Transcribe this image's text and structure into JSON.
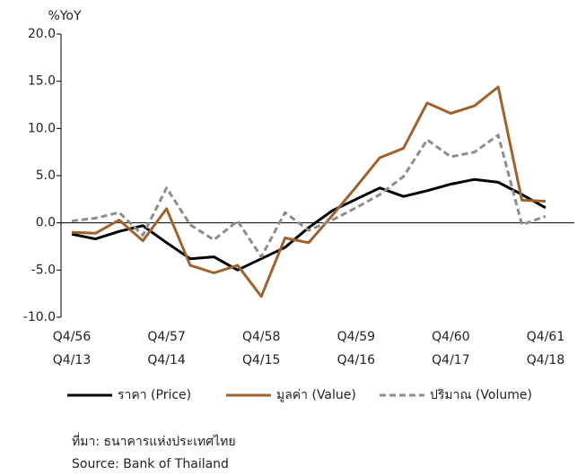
{
  "chart_data": {
    "type": "line",
    "y_axis_label": "%YoY",
    "categories": [
      "Q4/56",
      null,
      null,
      null,
      "Q4/57",
      null,
      null,
      null,
      "Q4/58",
      null,
      null,
      null,
      "Q4/59",
      null,
      null,
      null,
      "Q4/60",
      null,
      null,
      null,
      "Q4/61"
    ],
    "categories_secondary": [
      "Q4/13",
      null,
      null,
      null,
      "Q4/14",
      null,
      null,
      null,
      "Q4/15",
      null,
      null,
      null,
      "Q4/16",
      null,
      null,
      null,
      "Q4/17",
      null,
      null,
      null,
      "Q4/18"
    ],
    "series": [
      {
        "name": "ราคา (Price)",
        "color": "#000000",
        "dash": "solid",
        "values": [
          -1.2,
          -1.7,
          -0.9,
          -0.3,
          -2.1,
          -3.8,
          -3.6,
          -5.0,
          -3.8,
          -2.6,
          -0.5,
          1.3,
          2.5,
          3.7,
          2.8,
          3.4,
          4.1,
          4.6,
          4.3,
          3.0,
          1.6
        ]
      },
      {
        "name": "มูลค่า (Value)",
        "color": "#a0622d",
        "dash": "solid",
        "values": [
          -1.0,
          -1.1,
          0.3,
          -1.9,
          1.5,
          -4.5,
          -5.3,
          -4.5,
          -7.8,
          -1.6,
          -2.1,
          0.8,
          3.8,
          6.9,
          7.9,
          12.7,
          11.6,
          12.4,
          14.4,
          2.4,
          2.3
        ]
      },
      {
        "name": "ปริมาณ (Volume)",
        "color": "#8c8c8c",
        "dash": "dashed",
        "values": [
          0.2,
          0.5,
          1.1,
          -1.3,
          3.7,
          -0.2,
          -1.8,
          0.2,
          -3.6,
          1.1,
          -0.8,
          0.3,
          1.6,
          3.0,
          4.9,
          8.8,
          7.0,
          7.5,
          9.3,
          -0.2,
          0.7
        ]
      }
    ],
    "ylim": [
      -10,
      20
    ],
    "yticks": [
      {
        "value": -10,
        "label": "-10.0"
      },
      {
        "value": -5,
        "label": "-5.0"
      },
      {
        "value": 0,
        "label": "0.0"
      },
      {
        "value": 5,
        "label": "5.0"
      },
      {
        "value": 10,
        "label": "10.0"
      },
      {
        "value": 15,
        "label": "15.0"
      },
      {
        "value": 20,
        "label": "20.0"
      }
    ],
    "grid": false,
    "legend": "bottom",
    "source_th": "ที่มา: ธนาคารแห่งประเทศไทย",
    "source_en": "Source: Bank of Thailand"
  }
}
